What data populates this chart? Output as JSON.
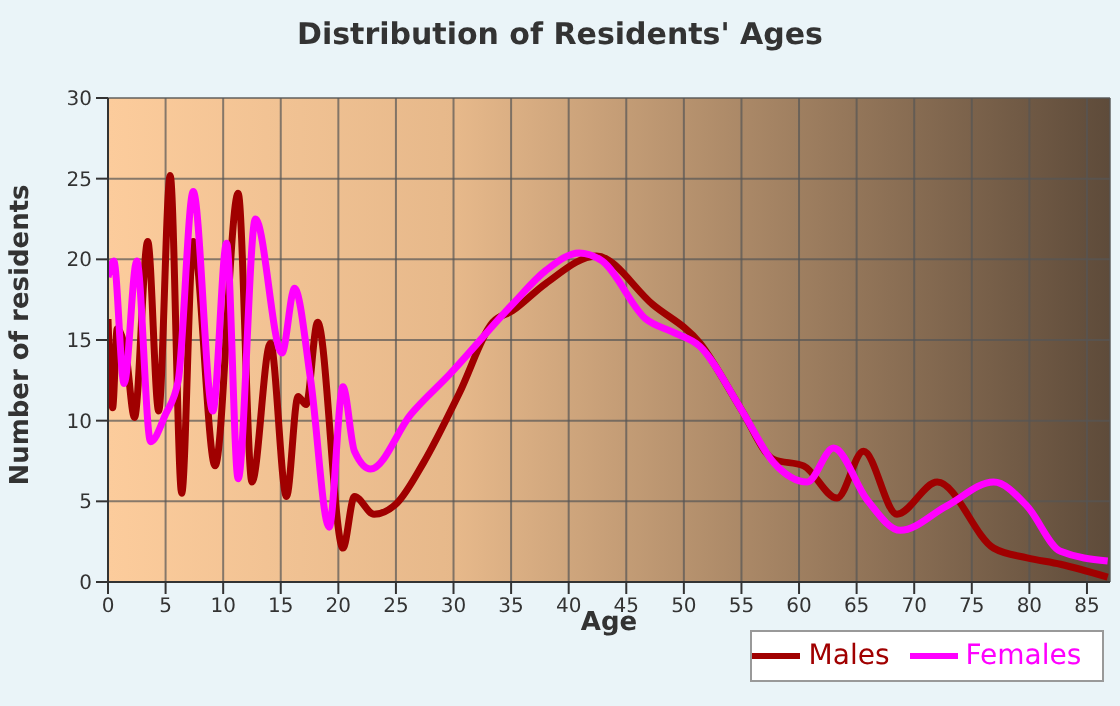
{
  "chart_data": {
    "type": "line",
    "title": "Distribution of Residents' Ages",
    "xlabel": "Age",
    "ylabel": "Number of residents",
    "xlim": [
      0,
      87
    ],
    "xticks": [
      0,
      5,
      10,
      15,
      20,
      25,
      30,
      35,
      40,
      45,
      50,
      55,
      60,
      65,
      70,
      75,
      80,
      85
    ],
    "ylim": [
      0,
      30
    ],
    "yticks": [
      0,
      5,
      10,
      15,
      20,
      25,
      30
    ],
    "grid": true,
    "legend": "bottom",
    "marker": "none",
    "line_style": "solid",
    "series": [
      {
        "name": "Males",
        "color": "#a00000",
        "x": [
          0,
          0.4,
          0.8,
          1.55,
          2.3,
          3.45,
          4.4,
          5.4,
          6.4,
          7.4,
          9.3,
          11.3,
          12.5,
          14.1,
          15.5,
          16.5,
          17.2,
          18.2,
          20.4,
          21.4,
          23.1,
          25.1,
          27.4,
          30.5,
          33.4,
          35.1,
          38.0,
          42.4,
          47.3,
          51.4,
          54.9,
          57.8,
          60.4,
          63.3,
          65.6,
          68.5,
          72.0,
          76.9,
          79.8,
          82.7,
          86.8
        ],
        "values": [
          16.3,
          10.8,
          15.7,
          14.2,
          10.2,
          21.1,
          10.6,
          25.2,
          5.5,
          21.1,
          7.2,
          24.1,
          6.2,
          14.8,
          5.3,
          11.5,
          11.0,
          16.1,
          2.1,
          5.3,
          4.2,
          4.9,
          7.4,
          11.7,
          16.1,
          16.8,
          18.5,
          20.2,
          17.2,
          14.8,
          10.8,
          7.6,
          7.2,
          5.2,
          8.1,
          4.2,
          6.2,
          2.1,
          1.5,
          1.1,
          0.3
        ]
      },
      {
        "name": "Females",
        "color": "#ff00ff",
        "x": [
          0,
          0.5,
          1.4,
          2.5,
          3.7,
          5.0,
          6.1,
          7.4,
          9.1,
          10.3,
          11.3,
          12.8,
          15.1,
          16.2,
          17.6,
          19.2,
          20.4,
          21.4,
          22.8,
          26.3,
          29.7,
          35.1,
          38.0,
          40.9,
          42.9,
          46.7,
          49.0,
          51.4,
          54.9,
          57.8,
          60.7,
          63.0,
          65.9,
          68.8,
          72.8,
          76.9,
          79.8,
          82.7,
          86.8
        ],
        "values": [
          18.9,
          19.9,
          12.3,
          19.9,
          8.7,
          10.4,
          12.5,
          24.2,
          10.6,
          21.0,
          6.4,
          22.5,
          14.2,
          18.2,
          12.5,
          3.4,
          12.1,
          8.1,
          7.0,
          10.4,
          12.9,
          17.2,
          19.3,
          20.4,
          19.9,
          16.3,
          15.5,
          14.6,
          10.8,
          7.4,
          6.2,
          8.3,
          5.1,
          3.2,
          4.7,
          6.2,
          4.7,
          1.9,
          1.3
        ]
      }
    ]
  }
}
